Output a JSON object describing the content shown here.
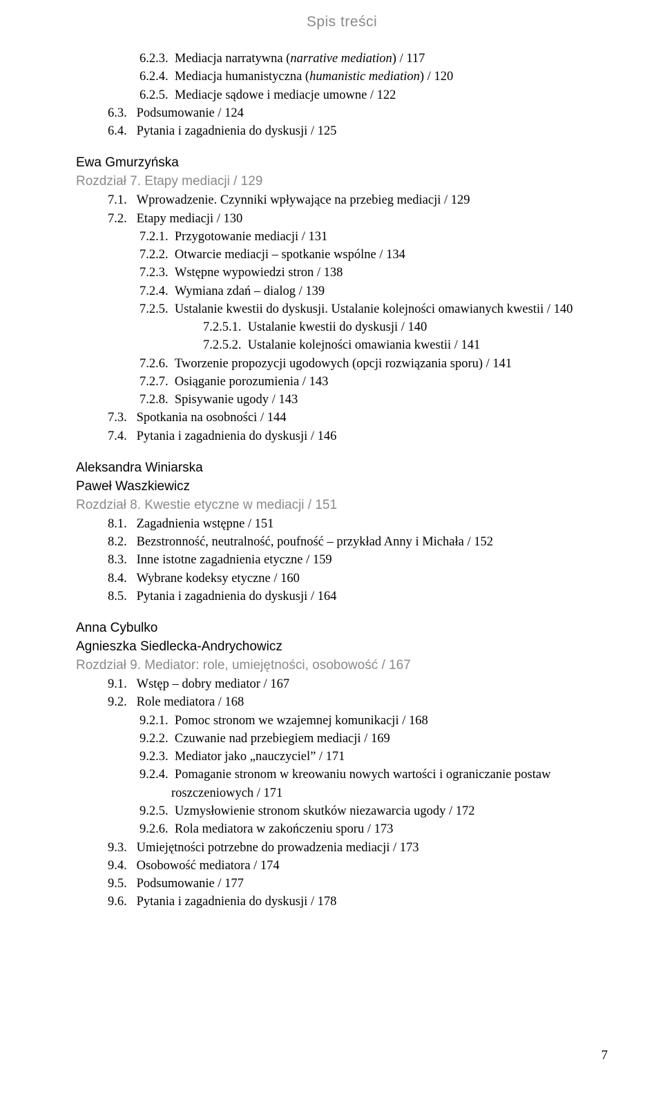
{
  "header": "Spis treści",
  "pageNumber": "7",
  "sec6": {
    "e623": {
      "num": "6.2.3.",
      "txt": "Mediacja narratywna (",
      "it": "narrative mediation",
      "after": ")   / 117"
    },
    "e624": {
      "num": "6.2.4.",
      "txt": "Mediacja humanistyczna (",
      "it": "humanistic mediation",
      "after": ")   / 120"
    },
    "e625": {
      "num": "6.2.5.",
      "txt": "Mediacje sądowe i mediacje umowne   / 122"
    },
    "e63": {
      "num": "6.3.",
      "txt": "Podsumowanie   / 124"
    },
    "e64": {
      "num": "6.4.",
      "txt": "Pytania i zagadnienia do dyskusji   / 125"
    }
  },
  "sec7": {
    "author": "Ewa Gmurzyńska",
    "chapter": "Rozdział 7. Etapy mediacji   / 129",
    "e71": {
      "num": "7.1.",
      "txt": "Wprowadzenie. Czynniki wpływające na przebieg mediacji   / 129"
    },
    "e72": {
      "num": "7.2.",
      "txt": "Etapy mediacji   / 130"
    },
    "e721": {
      "num": "7.2.1.",
      "txt": "Przygotowanie mediacji   / 131"
    },
    "e722": {
      "num": "7.2.2.",
      "txt": "Otwarcie mediacji – spotkanie wspólne   / 134"
    },
    "e723": {
      "num": "7.2.3.",
      "txt": "Wstępne wypowiedzi stron   / 138"
    },
    "e724": {
      "num": "7.2.4.",
      "txt": "Wymiana zdań – dialog   / 139"
    },
    "e725": {
      "num": "7.2.5.",
      "txt": "Ustalanie kwestii do dyskusji. Ustalanie kolejności omawianych kwestii   / 140"
    },
    "e7251": {
      "num": "7.2.5.1.",
      "txt": "Ustalanie kwestii do dyskusji   / 140"
    },
    "e7252": {
      "num": "7.2.5.2.",
      "txt": "Ustalanie kolejności omawiania kwestii   / 141"
    },
    "e726": {
      "num": "7.2.6.",
      "txt": "Tworzenie propozycji ugodowych (opcji rozwiązania sporu)   / 141"
    },
    "e727": {
      "num": "7.2.7.",
      "txt": "Osiąganie porozumienia   / 143"
    },
    "e728": {
      "num": "7.2.8.",
      "txt": "Spisywanie ugody   / 143"
    },
    "e73": {
      "num": "7.3.",
      "txt": "Spotkania na osobności   / 144"
    },
    "e74": {
      "num": "7.4.",
      "txt": "Pytania i zagadnienia do dyskusji   / 146"
    }
  },
  "sec8": {
    "author1": "Aleksandra Winiarska",
    "author2": "Paweł Waszkiewicz",
    "chapter": "Rozdział 8. Kwestie etyczne w mediacji   / 151",
    "e81": {
      "num": "8.1.",
      "txt": "Zagadnienia wstępne   / 151"
    },
    "e82": {
      "num": "8.2.",
      "txt": "Bezstronność, neutralność, poufność – przykład Anny i Michała   / 152"
    },
    "e83": {
      "num": "8.3.",
      "txt": "Inne istotne zagadnienia etyczne   / 159"
    },
    "e84": {
      "num": "8.4.",
      "txt": "Wybrane kodeksy etyczne   / 160"
    },
    "e85": {
      "num": "8.5.",
      "txt": "Pytania i zagadnienia do dyskusji   / 164"
    }
  },
  "sec9": {
    "author1": "Anna Cybulko",
    "author2": "Agnieszka Siedlecka-Andrychowicz",
    "chapter": "Rozdział 9. Mediator: role, umiejętności, osobowość   / 167",
    "e91": {
      "num": "9.1.",
      "txt": "Wstęp – dobry mediator   / 167"
    },
    "e92": {
      "num": "9.2.",
      "txt": "Role mediatora   / 168"
    },
    "e921": {
      "num": "9.2.1.",
      "txt": "Pomoc stronom we wzajemnej komunikacji   / 168"
    },
    "e922": {
      "num": "9.2.2.",
      "txt": "Czuwanie nad przebiegiem mediacji   / 169"
    },
    "e923": {
      "num": "9.2.3.",
      "txt": "Mediator jako „nauczyciel”   / 171"
    },
    "e924": {
      "num": "9.2.4.",
      "txt": "Pomaganie stronom w kreowaniu nowych wartości i ograniczanie postaw roszczeniowych   / 171"
    },
    "e925": {
      "num": "9.2.5.",
      "txt": "Uzmysłowienie stronom skutków niezawarcia ugody   / 172"
    },
    "e926": {
      "num": "9.2.6.",
      "txt": "Rola mediatora w zakończeniu sporu   / 173"
    },
    "e93": {
      "num": "9.3.",
      "txt": "Umiejętności potrzebne do prowadzenia mediacji   / 173"
    },
    "e94": {
      "num": "9.4.",
      "txt": "Osobowość mediatora   / 174"
    },
    "e95": {
      "num": "9.5.",
      "txt": "Podsumowanie   / 177"
    },
    "e96": {
      "num": "9.6.",
      "txt": "Pytania i zagadnienia do dyskusji   / 178"
    }
  }
}
